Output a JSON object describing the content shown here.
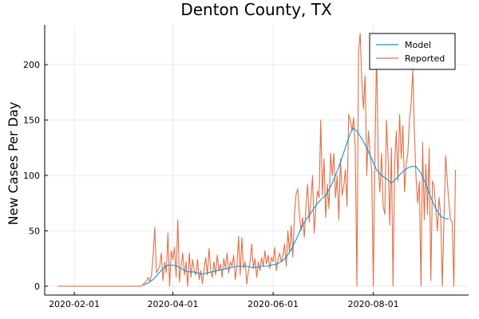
{
  "chart_data": {
    "type": "line",
    "title": "Denton County, TX",
    "xlabel": "",
    "ylabel": "New Cases Per Day",
    "x_type": "date",
    "xlim": [
      "2020-01-14",
      "2020-09-28"
    ],
    "ylim": [
      -8,
      236
    ],
    "x_ticks": [
      "2020-02-01",
      "2020-04-01",
      "2020-06-01",
      "2020-08-01"
    ],
    "y_ticks": [
      0,
      50,
      100,
      150,
      200
    ],
    "grid": true,
    "legend_position": "top-right",
    "series": [
      {
        "name": "Model",
        "color": "#0099e6",
        "points": [
          [
            "2020-03-14",
            1
          ],
          [
            "2020-03-17",
            3
          ],
          [
            "2020-03-20",
            6
          ],
          [
            "2020-03-23",
            11
          ],
          [
            "2020-03-26",
            16
          ],
          [
            "2020-03-29",
            19
          ],
          [
            "2020-04-01",
            19
          ],
          [
            "2020-04-04",
            18
          ],
          [
            "2020-04-07",
            15
          ],
          [
            "2020-04-10",
            13
          ],
          [
            "2020-04-13",
            13
          ],
          [
            "2020-04-16",
            12
          ],
          [
            "2020-04-19",
            11
          ],
          [
            "2020-04-22",
            12
          ],
          [
            "2020-04-25",
            13
          ],
          [
            "2020-04-28",
            14
          ],
          [
            "2020-05-01",
            15
          ],
          [
            "2020-05-04",
            16
          ],
          [
            "2020-05-07",
            17
          ],
          [
            "2020-05-10",
            18
          ],
          [
            "2020-05-13",
            18
          ],
          [
            "2020-05-16",
            18
          ],
          [
            "2020-05-19",
            17
          ],
          [
            "2020-05-22",
            17
          ],
          [
            "2020-05-25",
            18
          ],
          [
            "2020-05-28",
            18
          ],
          [
            "2020-05-31",
            19
          ],
          [
            "2020-06-03",
            20
          ],
          [
            "2020-06-06",
            22
          ],
          [
            "2020-06-09",
            26
          ],
          [
            "2020-06-12",
            33
          ],
          [
            "2020-06-15",
            42
          ],
          [
            "2020-06-18",
            52
          ],
          [
            "2020-06-21",
            60
          ],
          [
            "2020-06-24",
            66
          ],
          [
            "2020-06-27",
            73
          ],
          [
            "2020-06-30",
            78
          ],
          [
            "2020-07-03",
            82
          ],
          [
            "2020-07-06",
            90
          ],
          [
            "2020-07-09",
            100
          ],
          [
            "2020-07-12",
            112
          ],
          [
            "2020-07-15",
            125
          ],
          [
            "2020-07-18",
            138
          ],
          [
            "2020-07-20",
            143
          ],
          [
            "2020-07-22",
            140
          ],
          [
            "2020-07-25",
            133
          ],
          [
            "2020-07-28",
            125
          ],
          [
            "2020-07-31",
            115
          ],
          [
            "2020-08-03",
            105
          ],
          [
            "2020-08-06",
            100
          ],
          [
            "2020-08-09",
            97
          ],
          [
            "2020-08-12",
            93
          ],
          [
            "2020-08-15",
            97
          ],
          [
            "2020-08-18",
            102
          ],
          [
            "2020-08-21",
            106
          ],
          [
            "2020-08-24",
            108
          ],
          [
            "2020-08-27",
            108
          ],
          [
            "2020-08-30",
            102
          ],
          [
            "2020-09-02",
            92
          ],
          [
            "2020-09-05",
            80
          ],
          [
            "2020-09-08",
            70
          ],
          [
            "2020-09-11",
            63
          ],
          [
            "2020-09-14",
            61
          ],
          [
            "2020-09-16",
            61
          ]
        ]
      },
      {
        "name": "Reported",
        "color": "#e26f46",
        "points": [
          [
            "2020-01-22",
            0
          ],
          [
            "2020-02-15",
            0
          ],
          [
            "2020-03-13",
            0
          ],
          [
            "2020-03-14",
            2
          ],
          [
            "2020-03-15",
            3
          ],
          [
            "2020-03-16",
            5
          ],
          [
            "2020-03-17",
            8
          ],
          [
            "2020-03-18",
            4
          ],
          [
            "2020-03-19",
            10
          ],
          [
            "2020-03-20",
            28
          ],
          [
            "2020-03-21",
            53
          ],
          [
            "2020-03-22",
            12
          ],
          [
            "2020-03-23",
            15
          ],
          [
            "2020-03-24",
            18
          ],
          [
            "2020-03-25",
            30
          ],
          [
            "2020-03-26",
            5
          ],
          [
            "2020-03-27",
            22
          ],
          [
            "2020-03-28",
            12
          ],
          [
            "2020-03-29",
            48
          ],
          [
            "2020-03-30",
            0
          ],
          [
            "2020-03-31",
            32
          ],
          [
            "2020-04-01",
            24
          ],
          [
            "2020-04-02",
            35
          ],
          [
            "2020-04-03",
            8
          ],
          [
            "2020-04-04",
            60
          ],
          [
            "2020-04-05",
            4
          ],
          [
            "2020-04-06",
            18
          ],
          [
            "2020-04-07",
            30
          ],
          [
            "2020-04-08",
            10
          ],
          [
            "2020-04-09",
            22
          ],
          [
            "2020-04-10",
            0
          ],
          [
            "2020-04-11",
            30
          ],
          [
            "2020-04-12",
            8
          ],
          [
            "2020-04-13",
            24
          ],
          [
            "2020-04-14",
            14
          ],
          [
            "2020-04-15",
            10
          ],
          [
            "2020-04-16",
            24
          ],
          [
            "2020-04-17",
            6
          ],
          [
            "2020-04-18",
            14
          ],
          [
            "2020-04-19",
            2
          ],
          [
            "2020-04-20",
            16
          ],
          [
            "2020-04-21",
            26
          ],
          [
            "2020-04-22",
            10
          ],
          [
            "2020-04-23",
            34
          ],
          [
            "2020-04-24",
            14
          ],
          [
            "2020-04-25",
            8
          ],
          [
            "2020-04-26",
            22
          ],
          [
            "2020-04-27",
            10
          ],
          [
            "2020-04-28",
            28
          ],
          [
            "2020-04-29",
            14
          ],
          [
            "2020-04-30",
            20
          ],
          [
            "2020-05-01",
            8
          ],
          [
            "2020-05-02",
            25
          ],
          [
            "2020-05-03",
            16
          ],
          [
            "2020-05-04",
            30
          ],
          [
            "2020-05-05",
            12
          ],
          [
            "2020-05-06",
            22
          ],
          [
            "2020-05-07",
            18
          ],
          [
            "2020-05-08",
            28
          ],
          [
            "2020-05-09",
            6
          ],
          [
            "2020-05-10",
            18
          ],
          [
            "2020-05-11",
            45
          ],
          [
            "2020-05-12",
            10
          ],
          [
            "2020-05-13",
            44
          ],
          [
            "2020-05-14",
            16
          ],
          [
            "2020-05-15",
            22
          ],
          [
            "2020-05-16",
            2
          ],
          [
            "2020-05-17",
            14
          ],
          [
            "2020-05-18",
            22
          ],
          [
            "2020-05-19",
            38
          ],
          [
            "2020-05-20",
            16
          ],
          [
            "2020-05-21",
            25
          ],
          [
            "2020-05-22",
            8
          ],
          [
            "2020-05-23",
            22
          ],
          [
            "2020-05-24",
            14
          ],
          [
            "2020-05-25",
            26
          ],
          [
            "2020-05-26",
            18
          ],
          [
            "2020-05-27",
            32
          ],
          [
            "2020-05-28",
            20
          ],
          [
            "2020-05-29",
            28
          ],
          [
            "2020-05-30",
            16
          ],
          [
            "2020-05-31",
            26
          ],
          [
            "2020-06-01",
            22
          ],
          [
            "2020-06-02",
            35
          ],
          [
            "2020-06-03",
            14
          ],
          [
            "2020-06-04",
            24
          ],
          [
            "2020-06-05",
            30
          ],
          [
            "2020-06-06",
            22
          ],
          [
            "2020-06-07",
            28
          ],
          [
            "2020-06-08",
            38
          ],
          [
            "2020-06-09",
            18
          ],
          [
            "2020-06-10",
            50
          ],
          [
            "2020-06-11",
            30
          ],
          [
            "2020-06-12",
            55
          ],
          [
            "2020-06-13",
            26
          ],
          [
            "2020-06-14",
            64
          ],
          [
            "2020-06-15",
            83
          ],
          [
            "2020-06-16",
            88
          ],
          [
            "2020-06-17",
            65
          ],
          [
            "2020-06-18",
            50
          ],
          [
            "2020-06-19",
            62
          ],
          [
            "2020-06-20",
            44
          ],
          [
            "2020-06-21",
            72
          ],
          [
            "2020-06-22",
            92
          ],
          [
            "2020-06-23",
            58
          ],
          [
            "2020-06-24",
            78
          ],
          [
            "2020-06-25",
            100
          ],
          [
            "2020-06-26",
            48
          ],
          [
            "2020-06-27",
            70
          ],
          [
            "2020-06-28",
            86
          ],
          [
            "2020-06-29",
            80
          ],
          [
            "2020-06-30",
            150
          ],
          [
            "2020-07-01",
            82
          ],
          [
            "2020-07-02",
            115
          ],
          [
            "2020-07-03",
            62
          ],
          [
            "2020-07-04",
            92
          ],
          [
            "2020-07-05",
            70
          ],
          [
            "2020-07-06",
            120
          ],
          [
            "2020-07-07",
            100
          ],
          [
            "2020-07-08",
            120
          ],
          [
            "2020-07-09",
            80
          ],
          [
            "2020-07-10",
            100
          ],
          [
            "2020-07-11",
            60
          ],
          [
            "2020-07-12",
            115
          ],
          [
            "2020-07-13",
            82
          ],
          [
            "2020-07-14",
            90
          ],
          [
            "2020-07-15",
            105
          ],
          [
            "2020-07-16",
            72
          ],
          [
            "2020-07-17",
            155
          ],
          [
            "2020-07-18",
            150
          ],
          [
            "2020-07-19",
            140
          ],
          [
            "2020-07-20",
            152
          ],
          [
            "2020-07-21",
            125
          ],
          [
            "2020-07-22",
            0
          ],
          [
            "2020-07-23",
            212
          ],
          [
            "2020-07-24",
            228
          ],
          [
            "2020-07-25",
            185
          ],
          [
            "2020-07-26",
            160
          ],
          [
            "2020-07-27",
            190
          ],
          [
            "2020-07-28",
            100
          ],
          [
            "2020-07-29",
            140
          ],
          [
            "2020-07-30",
            120
          ],
          [
            "2020-07-31",
            105
          ],
          [
            "2020-08-01",
            0
          ],
          [
            "2020-08-02",
            120
          ],
          [
            "2020-08-03",
            215
          ],
          [
            "2020-08-04",
            110
          ],
          [
            "2020-08-05",
            85
          ],
          [
            "2020-08-06",
            120
          ],
          [
            "2020-08-07",
            72
          ],
          [
            "2020-08-08",
            65
          ],
          [
            "2020-08-09",
            150
          ],
          [
            "2020-08-10",
            115
          ],
          [
            "2020-08-11",
            55
          ],
          [
            "2020-08-12",
            125
          ],
          [
            "2020-08-13",
            0
          ],
          [
            "2020-08-14",
            110
          ],
          [
            "2020-08-15",
            140
          ],
          [
            "2020-08-16",
            95
          ],
          [
            "2020-08-17",
            155
          ],
          [
            "2020-08-18",
            115
          ],
          [
            "2020-08-19",
            145
          ],
          [
            "2020-08-20",
            85
          ],
          [
            "2020-08-21",
            110
          ],
          [
            "2020-08-22",
            120
          ],
          [
            "2020-08-23",
            150
          ],
          [
            "2020-08-24",
            165
          ],
          [
            "2020-08-25",
            195
          ],
          [
            "2020-08-26",
            140
          ],
          [
            "2020-08-27",
            98
          ],
          [
            "2020-08-28",
            75
          ],
          [
            "2020-08-29",
            95
          ],
          [
            "2020-08-30",
            0
          ],
          [
            "2020-08-31",
            130
          ],
          [
            "2020-09-01",
            60
          ],
          [
            "2020-09-02",
            110
          ],
          [
            "2020-09-03",
            65
          ],
          [
            "2020-09-04",
            125
          ],
          [
            "2020-09-05",
            5
          ],
          [
            "2020-09-06",
            95
          ],
          [
            "2020-09-07",
            90
          ],
          [
            "2020-09-08",
            70
          ],
          [
            "2020-09-09",
            50
          ],
          [
            "2020-09-10",
            80
          ],
          [
            "2020-09-11",
            65
          ],
          [
            "2020-09-12",
            0
          ],
          [
            "2020-09-13",
            60
          ],
          [
            "2020-09-14",
            118
          ],
          [
            "2020-09-15",
            95
          ],
          [
            "2020-09-16",
            75
          ],
          [
            "2020-09-17",
            60
          ],
          [
            "2020-09-18",
            58
          ],
          [
            "2020-09-19",
            0
          ],
          [
            "2020-09-20",
            105
          ]
        ]
      }
    ]
  }
}
